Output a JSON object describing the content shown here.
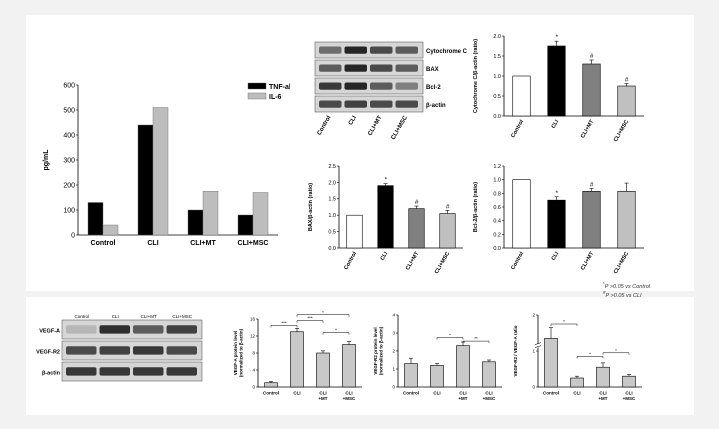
{
  "chart_data": [
    {
      "id": "tnf_il6",
      "type": "bar",
      "categories": [
        "Control",
        "CLI",
        "CLI+MT",
        "CLI+MSC"
      ],
      "series": [
        {
          "name": "TNF-alpha",
          "values": [
            130,
            440,
            100,
            80
          ],
          "color": "#000000"
        },
        {
          "name": "IL-6",
          "values": [
            40,
            510,
            175,
            170
          ],
          "color": "#bdbdbd"
        }
      ],
      "ylabel": "pg/mL",
      "ylim": [
        0,
        600
      ],
      "yticks": [
        "0",
        "100",
        "200",
        "300",
        "400",
        "500",
        "600"
      ],
      "legend": "top-right"
    },
    {
      "id": "cytc",
      "type": "bar",
      "categories": [
        "Control",
        "CLI",
        "CLI+MT",
        "CLI+MSC"
      ],
      "values": [
        1.0,
        1.75,
        1.3,
        0.75
      ],
      "errors": [
        0,
        0.12,
        0.1,
        0.06
      ],
      "colors": [
        "#ffffff",
        "#000000",
        "#808080",
        "#c0c0c0"
      ],
      "ylabel": "Cytochrome C/β-actin (ratio)",
      "ylim": [
        0,
        2.0
      ],
      "yticks": [
        "0.0",
        "0.5",
        "1.0",
        "1.5",
        "2.0"
      ],
      "marks": [
        "",
        "*",
        "#",
        "#"
      ]
    },
    {
      "id": "bax",
      "type": "bar",
      "categories": [
        "Control",
        "CLI",
        "CLI+MT",
        "CLI+MSC"
      ],
      "values": [
        1.0,
        1.9,
        1.2,
        1.05
      ],
      "errors": [
        0,
        0.06,
        0.08,
        0.1
      ],
      "colors": [
        "#ffffff",
        "#000000",
        "#808080",
        "#c0c0c0"
      ],
      "ylabel": "BAX/β-actin (ratio)",
      "ylim": [
        0,
        2.5
      ],
      "yticks": [
        "0.0",
        "0.5",
        "1.0",
        "1.5",
        "2.0",
        "2.5"
      ],
      "marks": [
        "",
        "*",
        "#",
        "#"
      ]
    },
    {
      "id": "bcl2",
      "type": "bar",
      "categories": [
        "Control",
        "CLI",
        "CLI+MT",
        "CLI+MSC"
      ],
      "values": [
        1.0,
        0.7,
        0.83,
        0.83
      ],
      "errors": [
        0,
        0.05,
        0.04,
        0.12
      ],
      "colors": [
        "#ffffff",
        "#000000",
        "#808080",
        "#c0c0c0"
      ],
      "ylabel": "Bcl-2/β-actin (ratio)",
      "ylim": [
        0,
        1.2
      ],
      "yticks": [
        "0.0",
        "0.2",
        "0.4",
        "0.6",
        "0.8",
        "1.0",
        "1.2"
      ],
      "marks": [
        "",
        "*",
        "#",
        ""
      ]
    },
    {
      "id": "vegfa",
      "type": "bar",
      "categories": [
        "Control",
        "CLI",
        "CLI\n+MT",
        "CLI\n+MSC"
      ],
      "values": [
        1.0,
        13.0,
        8.0,
        10.0
      ],
      "errors": [
        0.3,
        0.8,
        0.5,
        0.7
      ],
      "colors": [
        "#c8c8c8",
        "#c8c8c8",
        "#c8c8c8",
        "#c8c8c8"
      ],
      "ylabel": "VEGF-A protein level\n(normalized to β-actin)",
      "ylim": [
        0,
        16
      ],
      "yticks": [
        "0",
        "4",
        "8",
        "12",
        "16"
      ],
      "brackets": [
        {
          "from": 0,
          "to": 1,
          "label": "***",
          "level": 14.5
        },
        {
          "from": 1,
          "to": 2,
          "label": "***",
          "level": 15.6
        },
        {
          "from": 1,
          "to": 3,
          "label": "*",
          "level": 17.0
        },
        {
          "from": 2,
          "to": 3,
          "label": "*",
          "level": 12.8
        }
      ]
    },
    {
      "id": "vegfr2",
      "type": "bar",
      "categories": [
        "Control",
        "CLI",
        "CLI\n+MT",
        "CLI\n+MSC"
      ],
      "values": [
        1.3,
        1.2,
        2.3,
        1.4
      ],
      "errors": [
        0.3,
        0.1,
        0.2,
        0.1
      ],
      "colors": [
        "#c8c8c8",
        "#c8c8c8",
        "#c8c8c8",
        "#c8c8c8"
      ],
      "ylabel": "VEGF-R2 protein level\n(normalized to β-actin)",
      "ylim": [
        0,
        4
      ],
      "yticks": [
        "0",
        "1",
        "2",
        "3",
        "4"
      ],
      "brackets": [
        {
          "from": 1,
          "to": 2,
          "label": "*",
          "level": 2.75
        },
        {
          "from": 2,
          "to": 3,
          "label": "**",
          "level": 2.55
        }
      ]
    },
    {
      "id": "ratio",
      "type": "bar",
      "categories": [
        "Control",
        "CLI",
        "CLI\n+MT",
        "CLI\n+MSC"
      ],
      "values": [
        1.35,
        0.25,
        0.55,
        0.3
      ],
      "errors": [
        0.3,
        0.05,
        0.12,
        0.05
      ],
      "colors": [
        "#c8c8c8",
        "#c8c8c8",
        "#c8c8c8",
        "#c8c8c8"
      ],
      "ylabel": "VEGF-R2 / VEGF-A ratio",
      "ylim": [
        0,
        2
      ],
      "yticks": [
        "0",
        "1",
        "2"
      ],
      "axis_break": true,
      "brackets": [
        {
          "from": 0,
          "to": 1,
          "label": "*",
          "level": 1.75
        },
        {
          "from": 1,
          "to": 2,
          "label": "*",
          "level": 0.85
        },
        {
          "from": 2,
          "to": 3,
          "label": "*",
          "level": 0.95
        }
      ]
    }
  ],
  "blots": {
    "top": {
      "labels": [
        "Cytochrome C",
        "BAX",
        "Bcl-2",
        "β-actin"
      ],
      "lanes": [
        "Control",
        "CLI",
        "CLI+MT",
        "CLI+MSC"
      ]
    },
    "bottom": {
      "labels": [
        "VEGF-A",
        "VEGF-R2",
        "β-actin"
      ],
      "lanes": [
        "Control",
        "CLI",
        "CLI+MT",
        "CLI+MSC"
      ]
    }
  },
  "footnote": {
    "line1": "P >0.05 vs Control",
    "line2": "P >0.05 vs CLI",
    "sym1": "*",
    "sym2": "#"
  }
}
